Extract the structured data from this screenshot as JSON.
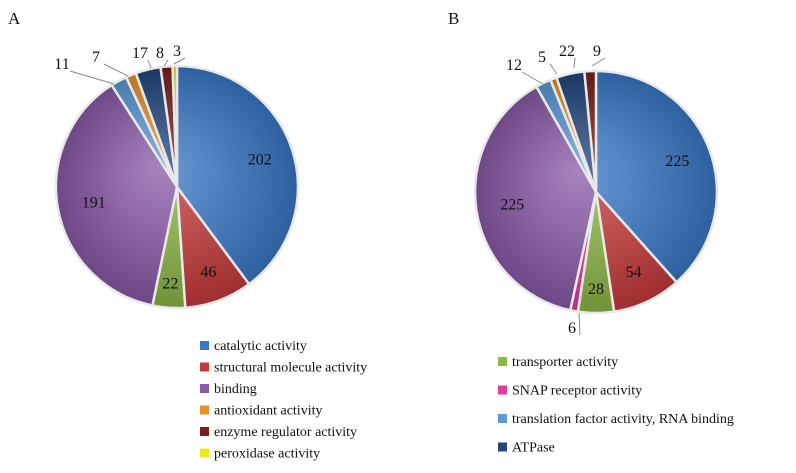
{
  "colors": {
    "catalytic activity": "#3a78c8",
    "structural molecule activity": "#c83a3a",
    "binding": "#8a5aa8",
    "antioxidant activity": "#e8902a",
    "enzyme regulator activity": "#7a1e1e",
    "peroxidase activity": "#f0e81e",
    "transporter activity": "#8cb846",
    "SNAP receptor activity": "#e03c9c",
    "translation factor activity, RNA binding": "#5a9ad6",
    "ATPase": "#22467e"
  },
  "chart_data": [
    {
      "type": "pie",
      "panel": "A",
      "slices": [
        {
          "category": "catalytic activity",
          "value": 202,
          "label": "202"
        },
        {
          "category": "structural molecule activity",
          "value": 46,
          "label": "46"
        },
        {
          "category": "transporter activity",
          "value": 22,
          "label": "22"
        },
        {
          "category": "binding",
          "value": 191,
          "label": "191"
        },
        {
          "category": "translation factor activity, RNA binding",
          "value": 11,
          "label": "11"
        },
        {
          "category": "antioxidant activity",
          "value": 7,
          "label": "7"
        },
        {
          "category": "ATPase",
          "value": 17,
          "label": "17"
        },
        {
          "category": "enzyme regulator activity",
          "value": 8,
          "label": "8"
        },
        {
          "category": "peroxidase activity",
          "value": 3,
          "label": "3"
        }
      ],
      "legend": [
        "catalytic activity",
        "structural molecule activity",
        "binding",
        "antioxidant activity",
        "enzyme regulator activity",
        "peroxidase activity"
      ]
    },
    {
      "type": "pie",
      "panel": "B",
      "slices": [
        {
          "category": "catalytic activity",
          "value": 225,
          "label": "225"
        },
        {
          "category": "structural molecule activity",
          "value": 54,
          "label": "54"
        },
        {
          "category": "transporter activity",
          "value": 28,
          "label": "28"
        },
        {
          "category": "SNAP receptor activity",
          "value": 6,
          "label": "6"
        },
        {
          "category": "binding",
          "value": 225,
          "label": "225"
        },
        {
          "category": "translation factor activity, RNA binding",
          "value": 12,
          "label": "12"
        },
        {
          "category": "antioxidant activity",
          "value": 5,
          "label": "5"
        },
        {
          "category": "ATPase",
          "value": 22,
          "label": "22"
        },
        {
          "category": "enzyme regulator activity",
          "value": 9,
          "label": "9"
        }
      ],
      "legend": [
        "transporter activity",
        "SNAP receptor activity",
        "translation factor activity, RNA binding",
        "ATPase"
      ]
    }
  ]
}
